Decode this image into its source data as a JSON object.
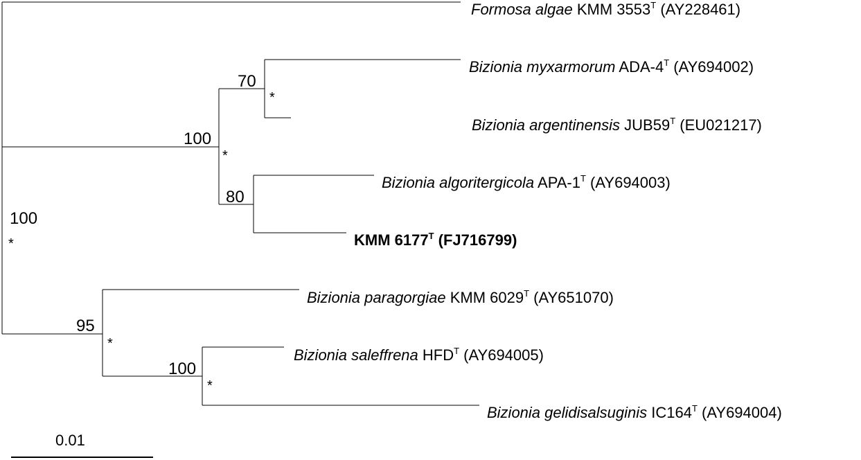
{
  "tree": {
    "leaves": [
      {
        "id": "formosa",
        "italic": "Formosa algae",
        "rest": " KMM 3553",
        "sup": "T",
        "acc": " (AY228461)",
        "bold": false
      },
      {
        "id": "myxarmorum",
        "italic": "Bizionia myxarmorum",
        "rest": " ADA-4",
        "sup": "T",
        "acc": " (AY694002)",
        "bold": false
      },
      {
        "id": "argentinensis",
        "italic": "Bizionia argentinensis",
        "rest": " JUB59",
        "sup": "T",
        "acc": " (EU021217)",
        "bold": false
      },
      {
        "id": "algoritergicola",
        "italic": "Bizionia algoritergicola",
        "rest": " APA-1",
        "sup": "T",
        "acc": " (AY694003)",
        "bold": false
      },
      {
        "id": "kmm6177",
        "italic": "",
        "rest": "KMM 6177",
        "sup": "T",
        "acc": " (FJ716799)",
        "bold": true
      },
      {
        "id": "paragorgiae",
        "italic": "Bizionia paragorgiae",
        "rest": " KMM 6029",
        "sup": "T",
        "acc": " (AY651070)",
        "bold": false
      },
      {
        "id": "saleffrena",
        "italic": "Bizionia saleffrena",
        "rest": " HFD",
        "sup": "T",
        "acc": " (AY694005)",
        "bold": false
      },
      {
        "id": "gelidisalsuginis",
        "italic": "Bizionia gelidisalsuginis",
        "rest": " IC164",
        "sup": "T",
        "acc": " (AY694004)",
        "bold": false
      }
    ],
    "bootstrap": [
      {
        "id": "root",
        "value": "100",
        "star": "*"
      },
      {
        "id": "bizionia-main",
        "value": "100",
        "star": "*"
      },
      {
        "id": "myxarmorum-argentinensis",
        "value": "70",
        "star": "*"
      },
      {
        "id": "algoritergicola-kmm6177",
        "value": "80",
        "star": ""
      },
      {
        "id": "paragorgiae-group",
        "value": "95",
        "star": "*"
      },
      {
        "id": "saleffrena-gelidisalsuginis",
        "value": "100",
        "star": "*"
      }
    ],
    "scale_bar": {
      "label": "0.01"
    }
  }
}
